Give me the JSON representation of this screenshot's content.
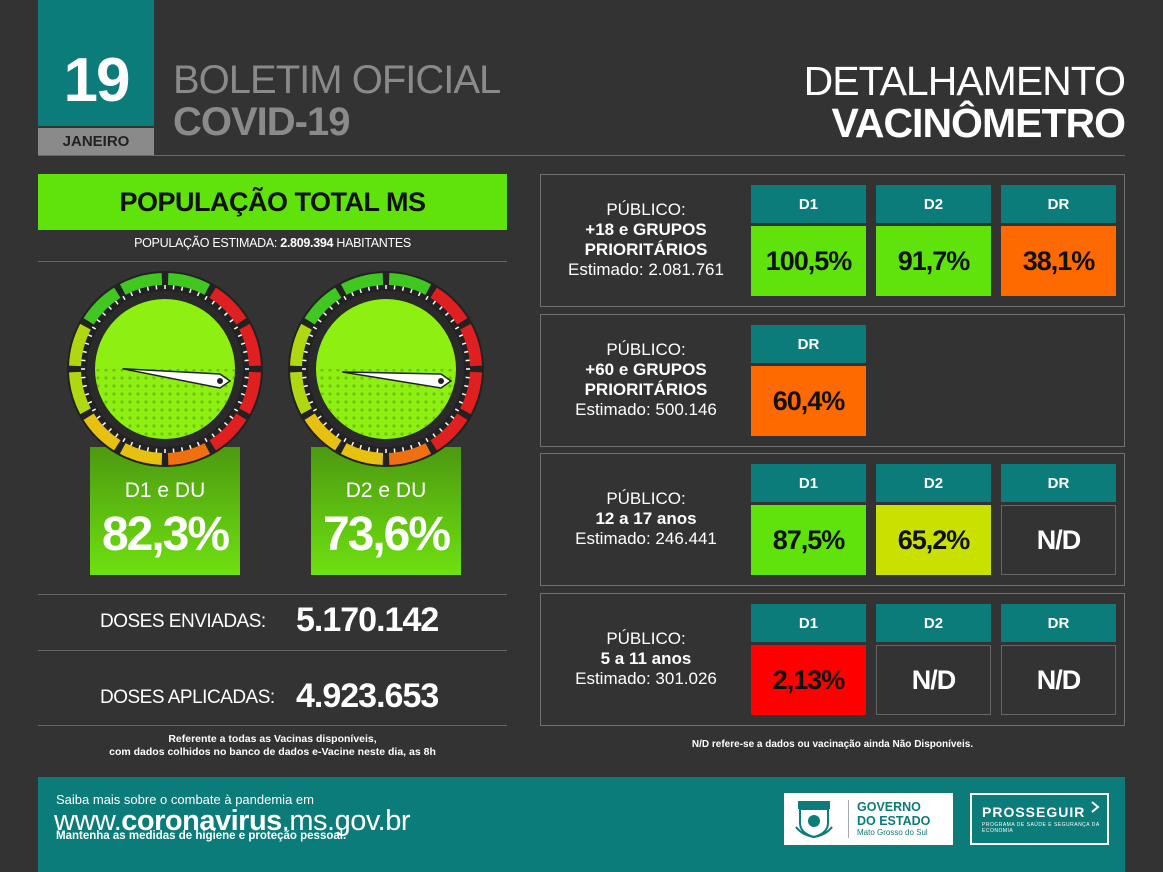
{
  "header": {
    "day": "19",
    "month": "JANEIRO",
    "title_line1": "BOLETIM OFICIAL",
    "title_line2": "COVID-19",
    "right_line1": "DETALHAMENTO",
    "right_line2": "VACINÔMETRO"
  },
  "population": {
    "banner": "POPULAÇÃO TOTAL MS",
    "estimate_label": "POPULAÇÃO ESTIMADA:",
    "estimate_value": "2.809.394",
    "estimate_unit": "HABITANTES"
  },
  "gauges": [
    {
      "label": "D1 e DU",
      "value": "82,3%",
      "percent": 82.3
    },
    {
      "label": "D2 e DU",
      "value": "73,6%",
      "percent": 73.6
    }
  ],
  "doses": {
    "sent_label": "DOSES ENVIADAS:",
    "sent_value": "5.170.142",
    "applied_label": "DOSES APLICADAS:",
    "applied_value": "4.923.653"
  },
  "left_note_line1": "Referente a todas as Vacinas disponíveis,",
  "left_note_line2": "com dados colhidos no banco de dados e-Vacine neste dia, as 8h",
  "groups": [
    {
      "line1": "PÚBLICO:",
      "line2": "+18 e GRUPOS",
      "line3": "PRIORITÁRIOS",
      "estimate": "Estimado: 2.081.761",
      "cols": [
        {
          "head": "D1",
          "value": "100,5%",
          "color": "#5fe30a"
        },
        {
          "head": "D2",
          "value": "91,7%",
          "color": "#5fe30a"
        },
        {
          "head": "DR",
          "value": "38,1%",
          "color": "#ff6a00"
        }
      ]
    },
    {
      "line1": "PÚBLICO:",
      "line2": "+60 e GRUPOS",
      "line3": "PRIORITÁRIOS",
      "estimate": "Estimado: 500.146",
      "cols": [
        {
          "head": "DR",
          "value": "60,4%",
          "color": "#ff6a00"
        }
      ]
    },
    {
      "line1": "PÚBLICO:",
      "line2": "12 a 17 anos",
      "line3": "",
      "estimate": "Estimado: 246.441",
      "cols": [
        {
          "head": "D1",
          "value": "87,5%",
          "color": "#5fe30a"
        },
        {
          "head": "D2",
          "value": "65,2%",
          "color": "#c9e000"
        },
        {
          "head": "DR",
          "value": "N/D",
          "color": "na"
        }
      ]
    },
    {
      "line1": "PÚBLICO:",
      "line2": "5 a 11 anos",
      "line3": "",
      "estimate": "Estimado: 301.026",
      "cols": [
        {
          "head": "D1",
          "value": "2,13%",
          "color": "#ff0000"
        },
        {
          "head": "D2",
          "value": "N/D",
          "color": "na"
        },
        {
          "head": "DR",
          "value": "N/D",
          "color": "na"
        }
      ]
    }
  ],
  "nd_note": "N/D refere-se a dados ou vacinação ainda Não Disponíveis.",
  "footer": {
    "line1": "Saiba mais sobre o combate à pandemia em",
    "url_prefix": "www.",
    "url_bold": "coronavirus",
    "url_suffix": ".ms.gov.br",
    "line3": "Mantenha as medidas de higiene e proteção pessoal.",
    "gov_line1": "GOVERNO",
    "gov_line2": "DO ESTADO",
    "gov_line3": "Mato Grosso do Sul",
    "prosseguir": "PROSSEGUIR",
    "prosseguir_sub": "PROGRAMA DE SAÚDE E SEGURANÇA DA ECONOMIA"
  },
  "colors": {
    "teal": "#0b7c7a",
    "green": "#5fe30a",
    "orange": "#ff6a00",
    "yellow_green": "#c9e000",
    "red": "#ff0000"
  }
}
